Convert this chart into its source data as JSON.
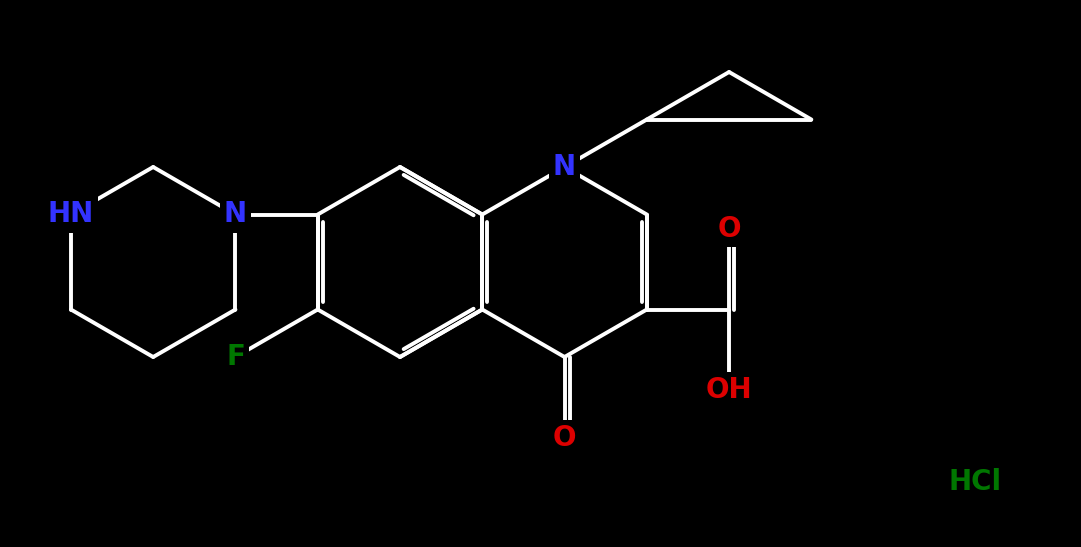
{
  "background_color": "#000000",
  "bond_color": "#ffffff",
  "bond_width": 2.8,
  "atom_colors": {
    "N": "#3333ff",
    "HN": "#3333ff",
    "O": "#dd0000",
    "OH": "#dd0000",
    "F": "#007700",
    "HCl": "#007700",
    "C": "#ffffff"
  },
  "font_size": 20,
  "fig_width": 10.81,
  "fig_height": 5.47,
  "dpi": 100
}
